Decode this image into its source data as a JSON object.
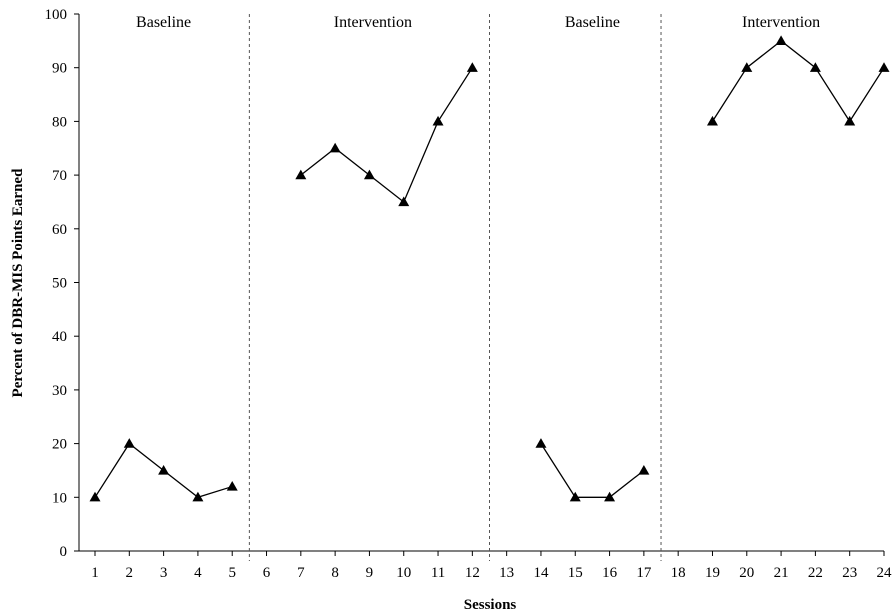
{
  "chart_data": {
    "type": "line",
    "xlabel": "Sessions",
    "ylabel": "Percent of DBR-MIS Points Earned",
    "ylim": [
      0,
      100
    ],
    "yticks": [
      0,
      10,
      20,
      30,
      40,
      50,
      60,
      70,
      80,
      90,
      100
    ],
    "xlim": [
      0.5,
      24
    ],
    "xticks": [
      1,
      2,
      3,
      4,
      5,
      6,
      7,
      8,
      9,
      10,
      11,
      12,
      13,
      14,
      15,
      16,
      17,
      18,
      19,
      20,
      21,
      22,
      23,
      24
    ],
    "grid": false,
    "marker": "triangle",
    "line_color": "#000000",
    "phase_lines": [
      5.5,
      12.5,
      17.5
    ],
    "phases": [
      {
        "label": "Baseline",
        "x_center": 3
      },
      {
        "label": "Intervention",
        "x_center": 9.1
      },
      {
        "label": "Baseline",
        "x_center": 15.5
      },
      {
        "label": "Intervention",
        "x_center": 21
      }
    ],
    "series": [
      {
        "x": [
          1,
          2,
          3,
          4,
          5
        ],
        "y": [
          10,
          20,
          15,
          10,
          12
        ]
      },
      {
        "x": [
          7,
          8,
          9,
          10,
          11,
          12
        ],
        "y": [
          70,
          75,
          70,
          65,
          80,
          90
        ]
      },
      {
        "x": [
          14,
          15,
          16,
          17
        ],
        "y": [
          20,
          10,
          10,
          15
        ]
      },
      {
        "x": [
          19,
          20,
          21,
          22,
          23,
          24
        ],
        "y": [
          80,
          90,
          95,
          90,
          80,
          90
        ]
      }
    ]
  }
}
